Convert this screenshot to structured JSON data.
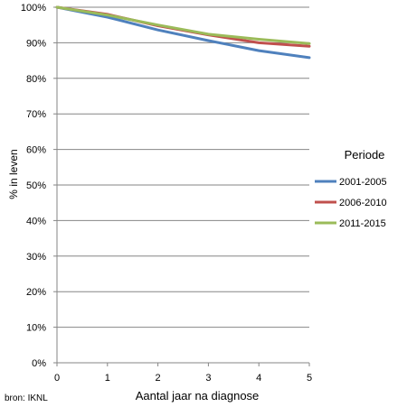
{
  "chart_data": {
    "type": "line",
    "x": [
      0,
      1,
      2,
      3,
      4,
      5
    ],
    "xlim": [
      0,
      5
    ],
    "ylim": [
      0,
      100
    ],
    "xticks": [
      "0",
      "1",
      "2",
      "3",
      "4",
      "5"
    ],
    "yticks": [
      "0%",
      "10%",
      "20%",
      "30%",
      "40%",
      "50%",
      "60%",
      "70%",
      "80%",
      "90%",
      "100%"
    ],
    "xlabel": "Aantal jaar na diagnose",
    "ylabel": "% in leven",
    "grid": true,
    "legend": {
      "title": "Periode",
      "placement": "right"
    },
    "series": [
      {
        "name": "2001-2005",
        "color": "#4F81BD",
        "values": [
          100,
          97.2,
          93.6,
          90.6,
          87.8,
          85.8
        ]
      },
      {
        "name": "2006-2010",
        "color": "#C0504D",
        "values": [
          100,
          98.0,
          94.8,
          92.2,
          90.0,
          89.0
        ]
      },
      {
        "name": "2011-2015",
        "color": "#9BBB59",
        "values": [
          100,
          97.8,
          95.0,
          92.4,
          91.0,
          89.8
        ]
      }
    ]
  },
  "source": "bron: IKNL",
  "colors": {
    "grid": "#868686",
    "axis": "#868686",
    "source_text": "#4F81BD"
  }
}
